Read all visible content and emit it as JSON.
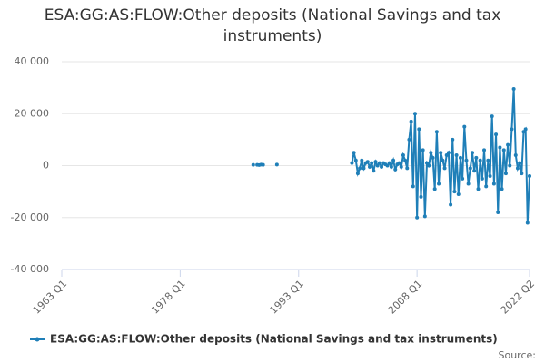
{
  "chart_data": {
    "type": "line",
    "title": "ESA:GG:AS:FLOW:Other deposits (National Savings and tax instruments)",
    "source_label": "Source:",
    "categories": [
      "1963 Q1",
      null,
      null,
      null,
      null,
      null,
      null,
      null,
      null,
      null,
      null,
      null,
      null,
      null,
      null,
      null,
      null,
      null,
      null,
      null,
      null,
      null,
      null,
      null,
      null,
      null,
      null,
      null,
      null,
      null,
      null,
      null,
      null,
      null,
      null,
      null,
      null,
      null,
      null,
      null,
      null,
      null,
      null,
      null,
      null,
      null,
      null,
      null,
      null,
      null,
      null,
      null,
      null,
      null,
      null,
      null,
      null,
      null,
      null,
      null,
      "1978 Q1",
      null,
      null,
      null,
      null,
      null,
      null,
      null,
      null,
      null,
      null,
      null,
      null,
      null,
      null,
      null,
      null,
      null,
      null,
      null,
      null,
      null,
      null,
      null,
      null,
      null,
      null,
      null,
      null,
      null,
      null,
      null,
      null,
      null,
      null,
      null,
      null,
      null,
      null,
      null,
      null,
      null,
      null,
      null,
      null,
      null,
      null,
      null,
      null,
      null,
      null,
      null,
      null,
      null,
      null,
      null,
      null,
      null,
      null,
      null,
      "1993 Q1",
      null,
      null,
      null,
      null,
      null,
      null,
      null,
      null,
      null,
      null,
      null,
      null,
      null,
      null,
      null,
      null,
      null,
      null,
      null,
      null,
      null,
      null,
      null,
      null,
      null,
      null,
      null,
      null,
      null,
      null,
      null,
      null,
      null,
      null,
      null,
      null,
      null,
      null,
      null,
      null,
      null,
      null,
      null,
      null,
      null,
      null,
      null,
      null,
      null,
      null,
      null,
      null,
      null,
      null,
      null,
      null,
      null,
      null,
      null,
      "2008 Q1",
      null,
      null,
      null,
      null,
      null,
      null,
      null,
      null,
      null,
      null,
      null,
      null,
      null,
      null,
      null,
      null,
      null,
      null,
      null,
      null,
      null,
      null,
      null,
      null,
      null,
      null,
      null,
      null,
      null,
      null,
      null,
      null,
      null,
      null,
      null,
      null,
      null,
      null,
      null,
      null,
      null,
      null,
      null,
      null,
      null,
      null,
      null,
      null,
      null,
      null,
      null,
      null,
      null,
      null,
      null,
      null,
      "2022 Q2"
    ],
    "series": [
      {
        "name": "ESA:GG:AS:FLOW:Other deposits (National Savings and tax instruments)",
        "color": "#1f7fb8",
        "values": [
          null,
          null,
          null,
          null,
          null,
          null,
          null,
          null,
          null,
          null,
          null,
          null,
          null,
          null,
          null,
          null,
          null,
          null,
          null,
          null,
          null,
          null,
          null,
          null,
          null,
          null,
          null,
          null,
          null,
          null,
          null,
          null,
          null,
          null,
          null,
          null,
          null,
          null,
          null,
          null,
          null,
          null,
          null,
          null,
          null,
          null,
          null,
          null,
          null,
          null,
          null,
          null,
          null,
          null,
          null,
          null,
          null,
          null,
          null,
          null,
          null,
          null,
          null,
          null,
          null,
          null,
          null,
          null,
          null,
          null,
          null,
          null,
          null,
          null,
          null,
          null,
          null,
          null,
          null,
          null,
          null,
          null,
          null,
          null,
          null,
          null,
          null,
          null,
          null,
          null,
          null,
          null,
          null,
          null,
          null,
          null,
          null,
          300,
          null,
          300,
          200,
          400,
          300,
          null,
          null,
          null,
          null,
          null,
          null,
          400,
          null,
          null,
          null,
          null,
          null,
          null,
          null,
          null,
          null,
          null,
          null,
          null,
          null,
          null,
          null,
          null,
          null,
          null,
          null,
          null,
          null,
          null,
          null,
          null,
          null,
          null,
          null,
          null,
          null,
          null,
          null,
          null,
          null,
          null,
          null,
          null,
          null,
          1000,
          5000,
          2000,
          -3000,
          -1000,
          2000,
          -1000,
          1000,
          1500,
          -500,
          1000,
          -2000,
          1500,
          0,
          1000,
          -500,
          1000,
          500,
          0,
          1000,
          -500,
          2000,
          -1500,
          500,
          1000,
          -500,
          4000,
          2000,
          -1000,
          10000,
          17000,
          -8000,
          20000,
          -20000,
          14000,
          -12000,
          6000,
          -19500,
          1000,
          0,
          5000,
          3000,
          -9000,
          13000,
          -7000,
          5000,
          2000,
          -1000,
          4000,
          5000,
          -15000,
          10000,
          -10000,
          4000,
          -11000,
          3000,
          -5000,
          15000,
          2000,
          -7000,
          -1000,
          5000,
          -2000,
          3000,
          -9000,
          2000,
          -5000,
          6000,
          -8000,
          2000,
          -4000,
          19000,
          -7000,
          12000,
          -18000,
          7000,
          -9000,
          6000,
          -3000,
          8000,
          0,
          14000,
          29500,
          4000,
          -1000,
          1000,
          -3000,
          13000,
          14000,
          -22000,
          -4000
        ]
      }
    ],
    "ylim": [
      -40000,
      40000
    ],
    "yticks": [
      {
        "value": -40000,
        "label": "-40 000"
      },
      {
        "value": -20000,
        "label": "-20 000"
      },
      0,
      {
        "value": 20000,
        "label": "20 000"
      },
      {
        "value": 40000,
        "label": "40 000"
      }
    ],
    "grid": true
  }
}
